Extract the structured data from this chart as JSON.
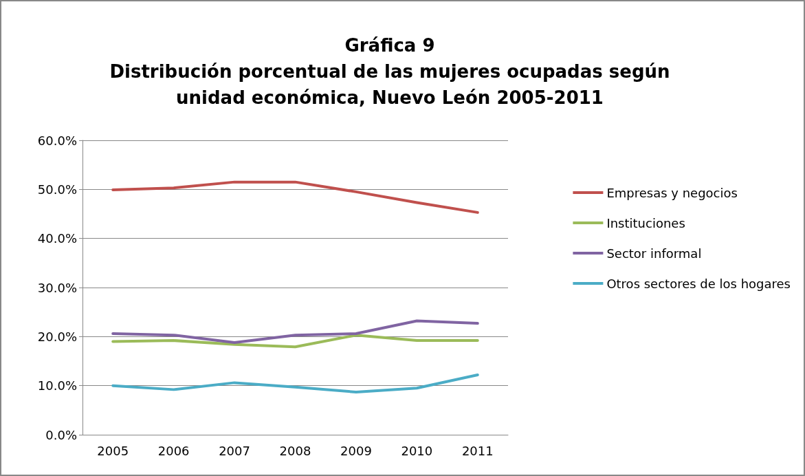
{
  "chart_data": {
    "type": "line",
    "title": "Gráfica 9\nDistribución porcentual de las mujeres ocupadas según\nunidad económica, Nuevo León 2005-2011",
    "categories": [
      "2005",
      "2006",
      "2007",
      "2008",
      "2009",
      "2010",
      "2011"
    ],
    "series": [
      {
        "name": "Empresas y negocios",
        "color": "#c0504d",
        "values": [
          49.9,
          50.3,
          51.5,
          51.5,
          49.5,
          47.3,
          45.3
        ]
      },
      {
        "name": "Instituciones",
        "color": "#9bbb59",
        "values": [
          19.0,
          19.2,
          18.4,
          17.9,
          20.3,
          19.2,
          19.2
        ]
      },
      {
        "name": "Sector informal",
        "color": "#8064a2",
        "values": [
          20.6,
          20.3,
          18.8,
          20.3,
          20.6,
          23.2,
          22.7
        ]
      },
      {
        "name": "Otros sectores de los hogares",
        "color": "#4bacc6",
        "values": [
          10.0,
          9.2,
          10.6,
          9.7,
          8.7,
          9.5,
          12.2
        ]
      }
    ],
    "ylim": [
      0,
      60
    ],
    "yticks": [
      {
        "value": 0,
        "label": "0.0%"
      },
      {
        "value": 10,
        "label": "10.0%"
      },
      {
        "value": 20,
        "label": "20.0%"
      },
      {
        "value": 30,
        "label": "30.0%"
      },
      {
        "value": 40,
        "label": "40.0%"
      },
      {
        "value": 50,
        "label": "50.0%"
      },
      {
        "value": 60,
        "label": "60.0%"
      }
    ],
    "grid": "y",
    "legend": "right",
    "marker": "none",
    "line_style": "solid"
  }
}
